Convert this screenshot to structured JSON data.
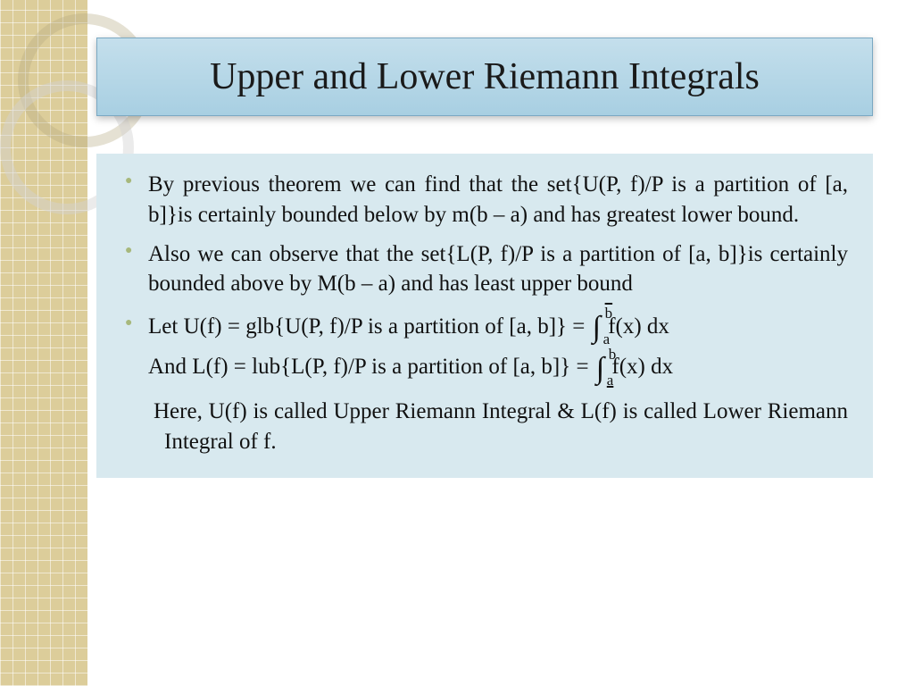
{
  "colors": {
    "sidebar_bg": "#dccd9a",
    "title_grad_top": "#c4dfec",
    "title_grad_bot": "#a8cfe2",
    "title_border": "#7aa8c2",
    "content_bg": "#d8e9ef",
    "bullet_color": "#a7b87c",
    "text_color": "#111111",
    "page_bg": "#ffffff"
  },
  "typography": {
    "title_fontsize": 42,
    "body_fontsize": 25,
    "font_family": "Times New Roman"
  },
  "title": "Upper and Lower Riemann Integrals",
  "bullets": {
    "b1": "By previous theorem we can find that the set{U(P, f)/P is a partition of [a, b]}is certainly bounded below by m(b – a) and has greatest lower bound.",
    "b2": "Also we can observe that the set{L(P, f)/P is a partition of [a, b]}is certainly bounded above by M(b – a) and has least upper bound",
    "b3_pre": "Let U(f) = glb{U(P, f)/P is a partition of [a, b]} = ",
    "b3_int_upper": "b",
    "b3_int_lower": "a",
    "b3_post": " f(x) dx",
    "b4_pre": "And L(f) = lub{L(P, f)/P is a partition of [a, b]} = ",
    "b4_int_upper": "b",
    "b4_int_lower": "a",
    "b4_post": " f(x) dx"
  },
  "closing": "Here, U(f) is called Upper Riemann Integral & L(f) is called Lower Riemann Integral of f."
}
